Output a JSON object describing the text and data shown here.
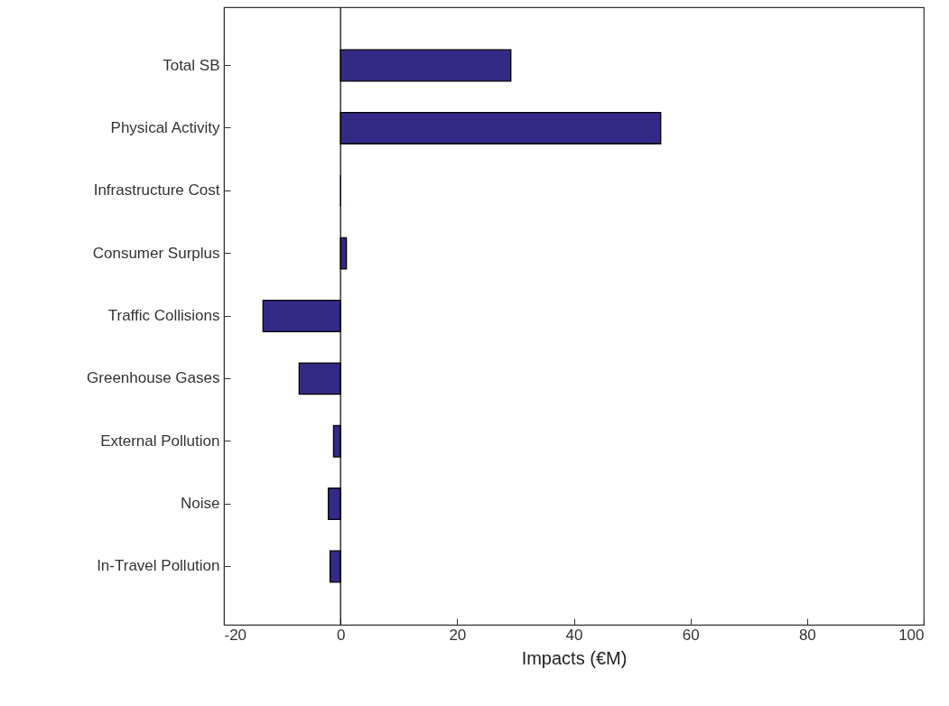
{
  "chart_data": {
    "type": "bar",
    "orientation": "horizontal",
    "xlabel": "Impacts (€M)",
    "categories": [
      "Total SB",
      "Physical Activity",
      "Infrastructure Cost",
      "Consumer Surplus",
      "Traffic Collisions",
      "Greenhouse Gases",
      "External Pollution",
      "Noise",
      "In-Travel Pollution"
    ],
    "values": [
      29.2,
      54.9,
      0,
      1.0,
      -13.3,
      -7.1,
      -1.2,
      -2.1,
      -1.8
    ],
    "color": "#332a85",
    "xlim": [
      -20,
      100
    ],
    "xticks": [
      -20,
      0,
      20,
      40,
      60,
      80,
      100
    ],
    "ref_lines": [
      {
        "axis": "x",
        "value": 0,
        "color": "#000000"
      }
    ],
    "grid": false
  }
}
